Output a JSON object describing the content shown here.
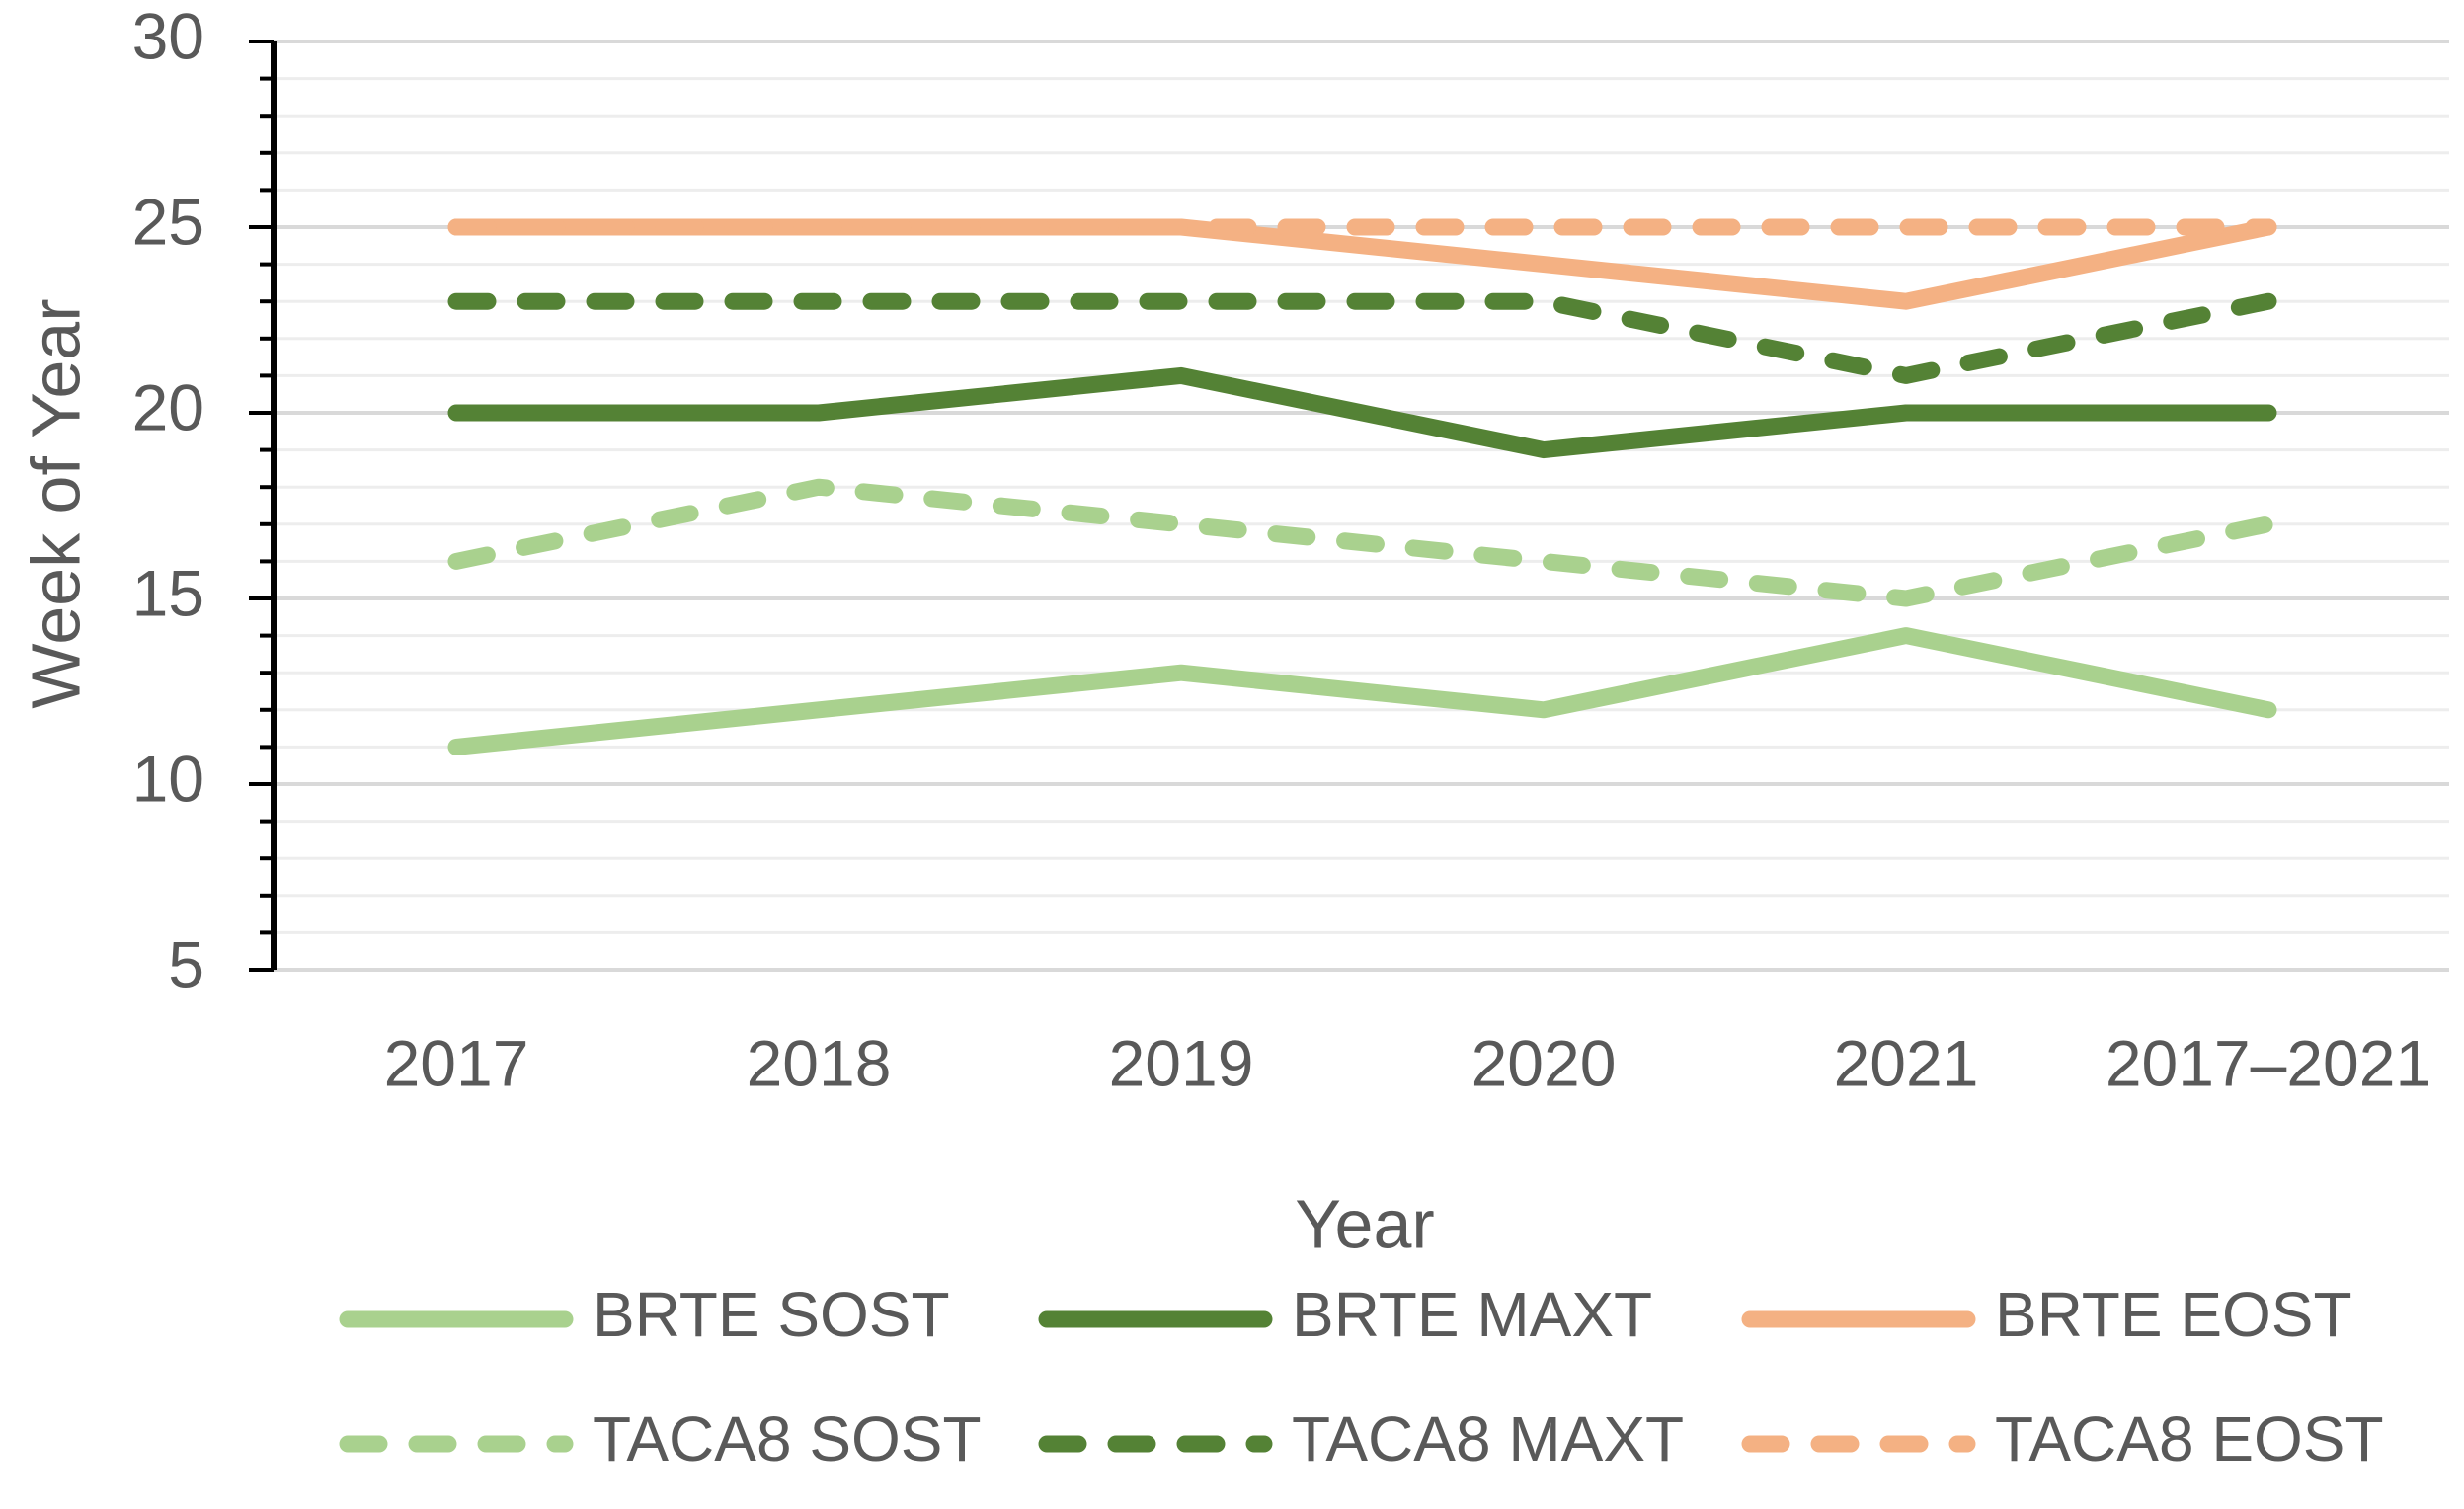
{
  "chart_data": {
    "type": "line",
    "title": "",
    "xlabel": "Year",
    "ylabel": "Week of Year",
    "categories": [
      "2017",
      "2018",
      "2019",
      "2020",
      "2021",
      "2017–2021"
    ],
    "ylim": [
      5,
      30
    ],
    "yticks": [
      "5",
      "10",
      "15",
      "20",
      "25",
      "30"
    ],
    "grid": true,
    "legend_position": "bottom",
    "series": [
      {
        "name": "BRTE SOST",
        "values": [
          11,
          12,
          13,
          12,
          14,
          12
        ],
        "color": "#A9D18E",
        "dash": false
      },
      {
        "name": "BRTE MAXT",
        "values": [
          20,
          20,
          21,
          19,
          20,
          20
        ],
        "color": "#548235",
        "dash": false
      },
      {
        "name": "BRTE EOST",
        "values": [
          25,
          25,
          25,
          24,
          23,
          25
        ],
        "color": "#F4B183",
        "dash": false
      },
      {
        "name": "TACA8 SOST",
        "values": [
          16,
          18,
          17,
          16,
          15,
          17
        ],
        "color": "#A9D18E",
        "dash": true
      },
      {
        "name": "TACA8 MAXT",
        "values": [
          23,
          23,
          23,
          23,
          21,
          23
        ],
        "color": "#548235",
        "dash": true
      },
      {
        "name": "TACA8 EOST",
        "values": [
          25,
          25,
          25,
          25,
          25,
          25
        ],
        "color": "#F4B183",
        "dash": true
      }
    ]
  }
}
